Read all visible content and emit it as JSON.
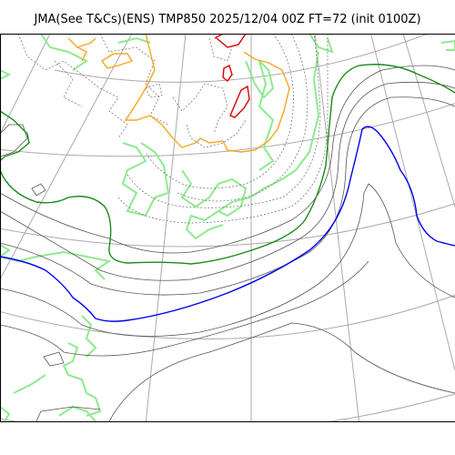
{
  "title": "JMA(See T&Cs)(ENS) TMP850 2025/12/04 00Z FT=72 (init 0100Z)",
  "colors": {
    "graticule": "#aaaaaa",
    "coastline": "#8fea8f",
    "thin_isotherm": "#555555",
    "dotted_isotherm": "#666666",
    "green_isotherm": "#1a8a1a",
    "blue_isotherm": "#0000ee",
    "orange_isotherm": "#f5a623",
    "red_isotherm": "#dd0000"
  }
}
